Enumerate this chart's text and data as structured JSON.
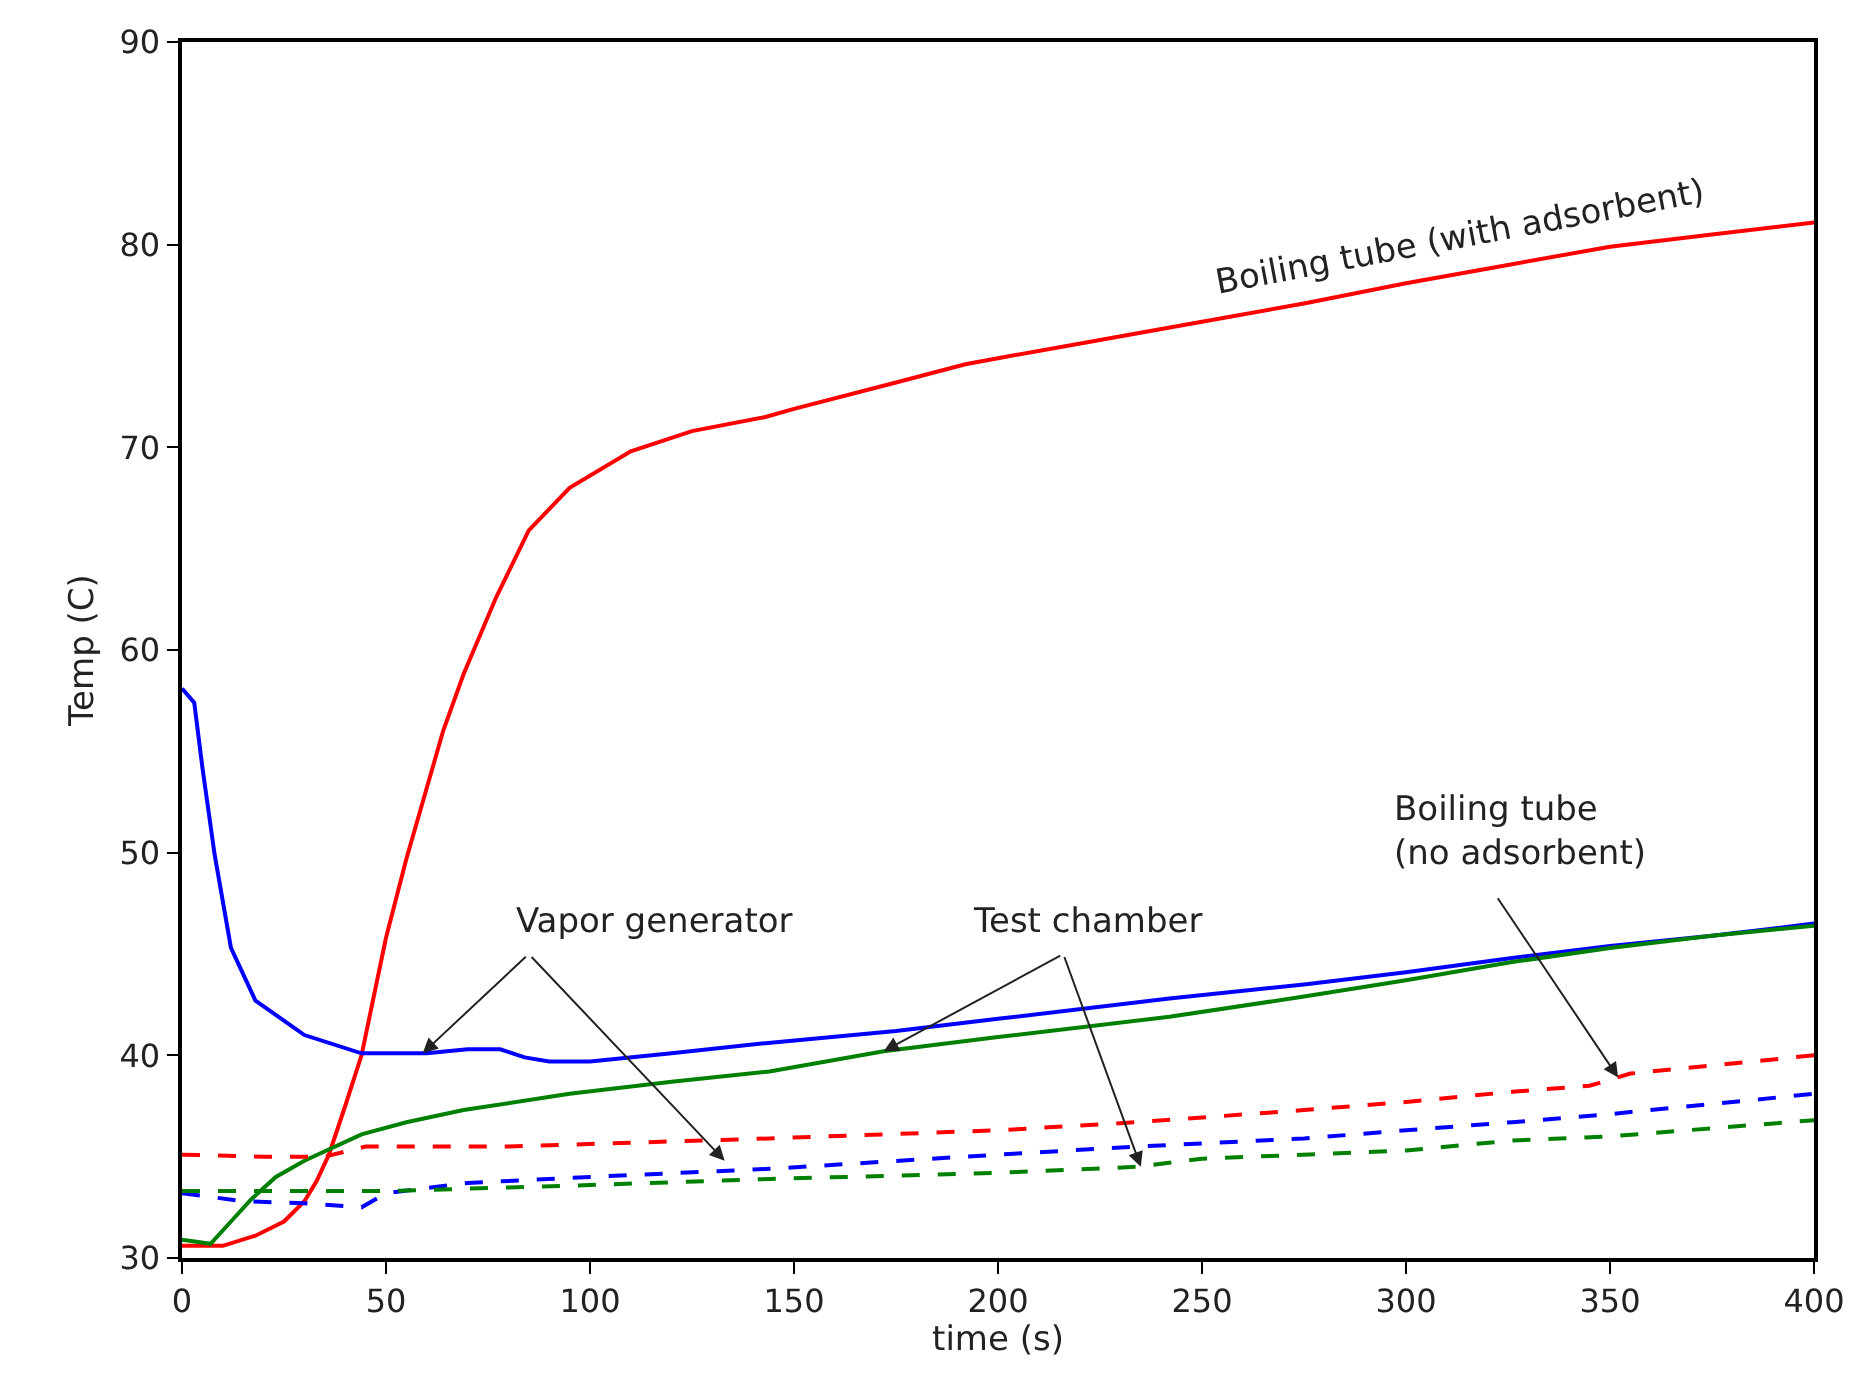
{
  "chart_data": {
    "type": "line",
    "xlabel": "time (s)",
    "ylabel": "Temp (C)",
    "xlim": [
      0,
      400
    ],
    "ylim": [
      30,
      90
    ],
    "xticks": [
      0,
      50,
      100,
      150,
      200,
      250,
      300,
      350,
      400
    ],
    "yticks": [
      30,
      40,
      50,
      60,
      70,
      80,
      90
    ],
    "marker": "none",
    "series": [
      {
        "color": "#ff0000",
        "line_style": "solid",
        "x": [
          0,
          10,
          18,
          25,
          30,
          33,
          36,
          40,
          44,
          50,
          55,
          59,
          64,
          69,
          77,
          85,
          95,
          110,
          125,
          143,
          150,
          175,
          192,
          200,
          225,
          250,
          275,
          300,
          325,
          350,
          375,
          400
        ],
        "values": [
          30.6,
          30.6,
          31.1,
          31.8,
          32.8,
          33.8,
          35.1,
          37.5,
          40,
          45.8,
          49.7,
          52.5,
          56,
          58.8,
          62.6,
          65.9,
          68,
          69.8,
          70.8,
          71.5,
          71.9,
          73.2,
          74.1,
          74.4,
          75.3,
          76.2,
          77.1,
          78.1,
          79,
          79.9,
          80.5,
          81.1
        ]
      },
      {
        "color": "#0000ff",
        "line_style": "solid",
        "x": [
          0,
          3,
          5,
          8,
          12,
          18,
          30,
          44,
          60,
          70,
          78,
          84,
          90,
          100,
          120,
          143,
          175,
          200,
          242,
          275,
          300,
          326,
          350,
          375,
          400
        ],
        "values": [
          58.1,
          57.4,
          54.2,
          49.9,
          45.3,
          42.7,
          41.0,
          40.1,
          40.1,
          40.3,
          40.3,
          39.9,
          39.7,
          39.7,
          40.1,
          40.6,
          41.2,
          41.8,
          42.8,
          43.5,
          44.1,
          44.8,
          45.4,
          45.9,
          46.5
        ]
      },
      {
        "color": "#008000",
        "line_style": "solid",
        "x": [
          0,
          7,
          12,
          17,
          23,
          30,
          44,
          55,
          69,
          95,
          120,
          144,
          172,
          200,
          242,
          275,
          300,
          326,
          350,
          375,
          400
        ],
        "values": [
          30.9,
          30.7,
          31.8,
          32.9,
          34,
          34.8,
          36.1,
          36.7,
          37.3,
          38.1,
          38.7,
          39.2,
          40.2,
          40.9,
          41.9,
          42.9,
          43.7,
          44.6,
          45.3,
          45.9,
          46.4
        ]
      },
      {
        "color": "#ff0000",
        "line_style": "dashed",
        "x": [
          0,
          20,
          35,
          45,
          80,
          144,
          200,
          234,
          275,
          300,
          326,
          345,
          355,
          375,
          400
        ],
        "values": [
          35.1,
          35.0,
          35.0,
          35.5,
          35.5,
          35.9,
          36.3,
          36.7,
          37.3,
          37.7,
          38.2,
          38.5,
          39.1,
          39.5,
          40.0
        ]
      },
      {
        "color": "#0000ff",
        "line_style": "dashed",
        "x": [
          0,
          15,
          30,
          44,
          50,
          70,
          100,
          144,
          200,
          234,
          275,
          300,
          326,
          350,
          375,
          400
        ],
        "values": [
          33.2,
          32.8,
          32.7,
          32.5,
          33.2,
          33.7,
          34,
          34.4,
          35.1,
          35.5,
          35.9,
          36.3,
          36.7,
          37.1,
          37.6,
          38.1
        ]
      },
      {
        "color": "#008000",
        "line_style": "dashed",
        "x": [
          0,
          50,
          100,
          144,
          200,
          234,
          250,
          300,
          326,
          350,
          375,
          400
        ],
        "values": [
          33.3,
          33.3,
          33.6,
          33.9,
          34.2,
          34.5,
          34.9,
          35.3,
          35.8,
          36.0,
          36.4,
          36.8
        ]
      }
    ],
    "annotations": [
      "Boiling tube (with adsorbent)",
      {
        "text": "Vapor generator",
        "x": 59,
        "y": 40.1
      },
      {
        "text": "Test chamber",
        "x": 172,
        "y": 40.2
      },
      {
        "text": "Boiling tube\n(no adsorbent)",
        "x": 352,
        "y": 38.9
      }
    ]
  }
}
